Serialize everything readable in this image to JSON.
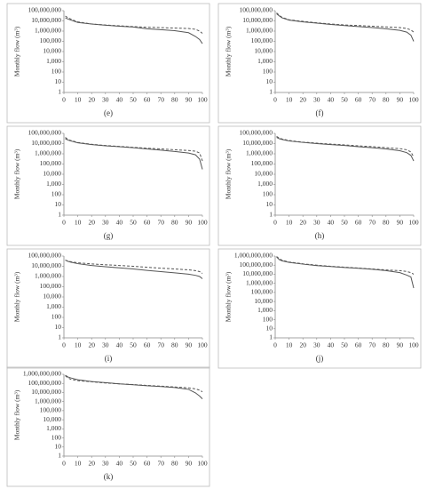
{
  "chart_data": [
    {
      "type": "line",
      "panel_label": "(e)",
      "ylabel": "Monthly flow (m³)",
      "log_y": true,
      "grid": false,
      "xlim": [
        0,
        100
      ],
      "xticks": [
        0,
        10,
        20,
        30,
        40,
        50,
        60,
        70,
        80,
        90,
        100
      ],
      "ylim": [
        1,
        100000000
      ],
      "yticks": [
        1,
        10,
        100,
        {
          "value": 1000,
          "label": "1,000"
        },
        {
          "value": 10000,
          "label": "10,000"
        },
        {
          "value": 100000,
          "label": "100,000"
        },
        {
          "value": 1000000,
          "label": "1,000,000"
        },
        {
          "value": 10000000,
          "label": "10,000,000"
        },
        {
          "value": 100000000,
          "label": "100,000,000"
        }
      ],
      "x": [
        1,
        3,
        5,
        10,
        20,
        30,
        40,
        50,
        60,
        70,
        80,
        90,
        95,
        98,
        100
      ],
      "series": [
        {
          "color": "#555555",
          "line_style": "solid",
          "values": [
            20000000,
            15000000,
            12000000,
            7000000,
            5000000,
            3800000,
            3000000,
            2500000,
            1700000,
            1400000,
            1100000,
            700000,
            300000,
            150000,
            60000
          ]
        },
        {
          "color": "#555555",
          "line_style": "dashed",
          "values": [
            30000000,
            20000000,
            15000000,
            8000000,
            5000000,
            4000000,
            3300000,
            2800000,
            2400000,
            2200000,
            2000000,
            1800000,
            1500000,
            1000000,
            600000
          ]
        }
      ]
    },
    {
      "type": "line",
      "panel_label": "(f)",
      "ylabel": "Monthly flow (m³)",
      "log_y": true,
      "grid": false,
      "xlim": [
        0,
        100
      ],
      "xticks": [
        0,
        10,
        20,
        30,
        40,
        50,
        60,
        70,
        80,
        90,
        100
      ],
      "ylim": [
        1,
        100000000
      ],
      "yticks": [
        1,
        10,
        100,
        {
          "value": 1000,
          "label": "1,000"
        },
        {
          "value": 10000,
          "label": "10,000"
        },
        {
          "value": 100000,
          "label": "100,000"
        },
        {
          "value": 1000000,
          "label": "1,000,000"
        },
        {
          "value": 10000000,
          "label": "10,000,000"
        },
        {
          "value": 100000000,
          "label": "100,000,000"
        }
      ],
      "x": [
        1,
        3,
        5,
        10,
        20,
        30,
        40,
        50,
        60,
        70,
        80,
        90,
        95,
        98,
        100
      ],
      "series": [
        {
          "color": "#555555",
          "line_style": "solid",
          "values": [
            50000000,
            30000000,
            20000000,
            12000000,
            8000000,
            6000000,
            4500000,
            3500000,
            2800000,
            2200000,
            1700000,
            1200000,
            800000,
            400000,
            100000
          ]
        },
        {
          "color": "#555555",
          "line_style": "dashed",
          "values": [
            60000000,
            35000000,
            22000000,
            13000000,
            9000000,
            6500000,
            5000000,
            4000000,
            3500000,
            3000000,
            2600000,
            2200000,
            1800000,
            1300000,
            800000
          ]
        }
      ]
    },
    {
      "type": "line",
      "panel_label": "(g)",
      "ylabel": "Monthly flow (m³)",
      "log_y": true,
      "grid": false,
      "xlim": [
        0,
        100
      ],
      "xticks": [
        0,
        10,
        20,
        30,
        40,
        50,
        60,
        70,
        80,
        90,
        100
      ],
      "ylim": [
        1,
        100000000
      ],
      "yticks": [
        1,
        10,
        100,
        {
          "value": 1000,
          "label": "1,000"
        },
        {
          "value": 10000,
          "label": "10,000"
        },
        {
          "value": 100000,
          "label": "100,000"
        },
        {
          "value": 1000000,
          "label": "1,000,000"
        },
        {
          "value": 10000000,
          "label": "10,000,000"
        },
        {
          "value": 100000000,
          "label": "100,000,000"
        }
      ],
      "x": [
        1,
        3,
        5,
        10,
        20,
        30,
        40,
        50,
        60,
        70,
        80,
        90,
        95,
        98,
        100
      ],
      "series": [
        {
          "color": "#555555",
          "line_style": "solid",
          "values": [
            30000000,
            22000000,
            18000000,
            12000000,
            8000000,
            6000000,
            5000000,
            4000000,
            3000000,
            2300000,
            1700000,
            1200000,
            800000,
            300000,
            30000
          ]
        },
        {
          "color": "#555555",
          "line_style": "dashed",
          "values": [
            40000000,
            25000000,
            20000000,
            13000000,
            8500000,
            6500000,
            5300000,
            4300000,
            3500000,
            3000000,
            2500000,
            2100000,
            1800000,
            1200000,
            200000
          ]
        }
      ]
    },
    {
      "type": "line",
      "panel_label": "(h)",
      "ylabel": "Monthly flow (m³)",
      "log_y": true,
      "grid": false,
      "xlim": [
        0,
        100
      ],
      "xticks": [
        0,
        10,
        20,
        30,
        40,
        50,
        60,
        70,
        80,
        90,
        100
      ],
      "ylim": [
        1,
        100000000
      ],
      "yticks": [
        1,
        10,
        100,
        {
          "value": 1000,
          "label": "1,000"
        },
        {
          "value": 10000,
          "label": "10,000"
        },
        {
          "value": 100000,
          "label": "100,000"
        },
        {
          "value": 1000000,
          "label": "1,000,000"
        },
        {
          "value": 10000000,
          "label": "10,000,000"
        },
        {
          "value": 100000000,
          "label": "100,000,000"
        }
      ],
      "x": [
        1,
        3,
        5,
        10,
        20,
        30,
        40,
        50,
        60,
        70,
        80,
        90,
        95,
        98,
        100
      ],
      "series": [
        {
          "color": "#555555",
          "line_style": "solid",
          "values": [
            40000000,
            30000000,
            25000000,
            18000000,
            13000000,
            10000000,
            8000000,
            6500000,
            5000000,
            4000000,
            3000000,
            2000000,
            1300000,
            700000,
            200000
          ]
        },
        {
          "color": "#555555",
          "line_style": "dashed",
          "values": [
            50000000,
            35000000,
            28000000,
            20000000,
            14000000,
            11000000,
            9000000,
            7500000,
            6000000,
            5000000,
            4000000,
            3200000,
            2500000,
            1500000,
            500000
          ]
        }
      ]
    },
    {
      "type": "line",
      "panel_label": "(i)",
      "ylabel": "Monthly flow (m³)",
      "log_y": true,
      "grid": false,
      "xlim": [
        0,
        100
      ],
      "xticks": [
        0,
        10,
        20,
        30,
        40,
        50,
        60,
        70,
        80,
        90,
        100
      ],
      "ylim": [
        1,
        100000000
      ],
      "yticks": [
        1,
        10,
        100,
        {
          "value": 1000,
          "label": "1,000"
        },
        {
          "value": 10000,
          "label": "10,000"
        },
        {
          "value": 100000,
          "label": "100,000"
        },
        {
          "value": 1000000,
          "label": "1,000,000"
        },
        {
          "value": 10000000,
          "label": "10,000,000"
        },
        {
          "value": 100000000,
          "label": "100,000,000"
        }
      ],
      "x": [
        1,
        3,
        5,
        10,
        20,
        30,
        40,
        50,
        60,
        70,
        80,
        90,
        95,
        98,
        100
      ],
      "series": [
        {
          "color": "#555555",
          "line_style": "solid",
          "values": [
            40000000,
            30000000,
            25000000,
            18000000,
            12000000,
            9000000,
            7000000,
            5500000,
            4000000,
            3000000,
            2300000,
            1700000,
            1300000,
            1000000,
            600000
          ]
        },
        {
          "color": "#555555",
          "line_style": "dashed",
          "values": [
            40000000,
            32000000,
            28000000,
            22000000,
            17000000,
            14000000,
            12000000,
            10000000,
            8000000,
            6500000,
            5500000,
            4500000,
            3800000,
            3000000,
            2000000
          ]
        }
      ]
    },
    {
      "type": "line",
      "panel_label": "(j)",
      "ylabel": "Monthly flow (m³)",
      "log_y": true,
      "grid": false,
      "xlim": [
        0,
        100
      ],
      "xticks": [
        0,
        10,
        20,
        30,
        40,
        50,
        60,
        70,
        80,
        90,
        100
      ],
      "ylim": [
        1,
        1000000000
      ],
      "yticks": [
        1,
        10,
        100,
        {
          "value": 1000,
          "label": "1,000"
        },
        {
          "value": 10000,
          "label": "10,000"
        },
        {
          "value": 100000,
          "label": "100,000"
        },
        {
          "value": 1000000,
          "label": "1,000,000"
        },
        {
          "value": 10000000,
          "label": "10,000,000"
        },
        {
          "value": 100000000,
          "label": "100,000,000"
        },
        {
          "value": 1000000000,
          "label": "1,000,000,000"
        }
      ],
      "x": [
        1,
        3,
        5,
        10,
        20,
        30,
        40,
        50,
        60,
        70,
        80,
        90,
        95,
        98,
        100
      ],
      "series": [
        {
          "color": "#555555",
          "line_style": "solid",
          "values": [
            800000000,
            400000000,
            300000000,
            200000000,
            130000000,
            90000000,
            70000000,
            55000000,
            45000000,
            35000000,
            25000000,
            15000000,
            8000000,
            5000000,
            300000
          ]
        },
        {
          "color": "#555555",
          "line_style": "dashed",
          "values": [
            900000000,
            500000000,
            350000000,
            220000000,
            140000000,
            100000000,
            75000000,
            60000000,
            48000000,
            38000000,
            30000000,
            25000000,
            20000000,
            15000000,
            10000000
          ]
        }
      ]
    },
    {
      "type": "line",
      "panel_label": "(k)",
      "ylabel": "Monthly flow (m³)",
      "log_y": true,
      "grid": false,
      "xlim": [
        0,
        100
      ],
      "xticks": [
        0,
        10,
        20,
        30,
        40,
        50,
        60,
        70,
        80,
        90,
        100
      ],
      "ylim": [
        1,
        1000000000
      ],
      "yticks": [
        1,
        10,
        100,
        {
          "value": 1000,
          "label": "1,000"
        },
        {
          "value": 10000,
          "label": "10,000"
        },
        {
          "value": 100000,
          "label": "100,000"
        },
        {
          "value": 1000000,
          "label": "1,000,000"
        },
        {
          "value": 10000000,
          "label": "10,000,000"
        },
        {
          "value": 100000000,
          "label": "100,000,000"
        },
        {
          "value": 1000000000,
          "label": "1,000,000,000"
        }
      ],
      "x": [
        1,
        3,
        5,
        10,
        20,
        30,
        40,
        50,
        60,
        70,
        80,
        90,
        95,
        98,
        100
      ],
      "series": [
        {
          "color": "#555555",
          "line_style": "solid",
          "values": [
            800000000,
            500000000,
            400000000,
            250000000,
            160000000,
            120000000,
            90000000,
            70000000,
            55000000,
            45000000,
            35000000,
            22000000,
            9000000,
            4000000,
            2000000
          ]
        },
        {
          "color": "#555555",
          "line_style": "dashed",
          "values": [
            700000000,
            400000000,
            280000000,
            200000000,
            150000000,
            110000000,
            90000000,
            75000000,
            60000000,
            50000000,
            40000000,
            32000000,
            25000000,
            18000000,
            12000000
          ]
        }
      ]
    }
  ]
}
